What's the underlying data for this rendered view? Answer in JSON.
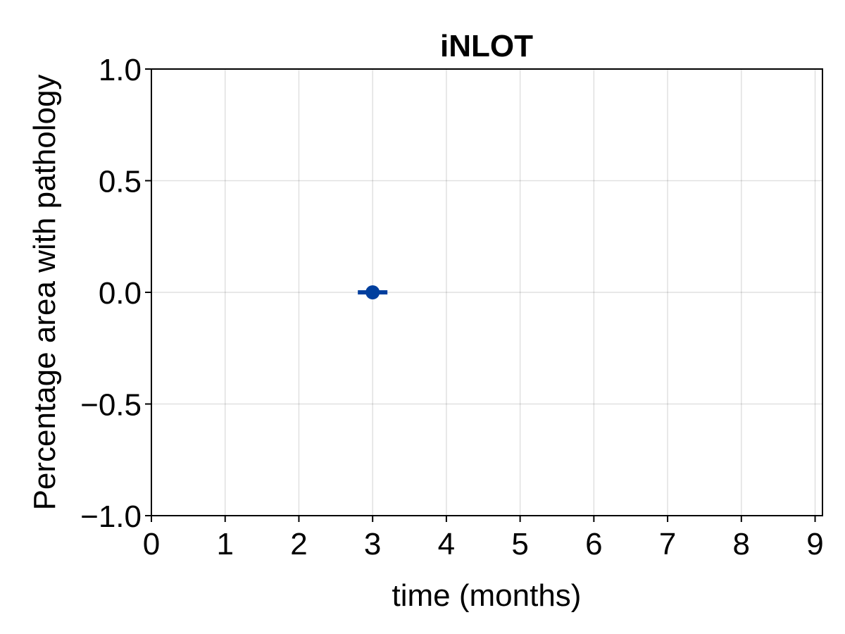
{
  "chart_data": {
    "type": "scatter",
    "title": "iNLOT",
    "xlabel": "time (months)",
    "ylabel": "Percentage area with pathology",
    "xlim": [
      0,
      9.1
    ],
    "ylim": [
      -1.0,
      1.0
    ],
    "x_ticks": [
      0,
      1,
      2,
      3,
      4,
      5,
      6,
      7,
      8,
      9
    ],
    "x_tick_labels": [
      "0",
      "1",
      "2",
      "3",
      "4",
      "5",
      "6",
      "7",
      "8",
      "9"
    ],
    "y_ticks": [
      -1.0,
      -0.5,
      0.0,
      0.5,
      1.0
    ],
    "y_tick_labels": [
      "−1.0",
      "−0.5",
      "0.0",
      "0.5",
      "1.0"
    ],
    "grid": true,
    "series": [
      {
        "color": "#003f9e",
        "points": [
          {
            "x": 3,
            "y": 0.0,
            "err_low": 0.0,
            "err_high": 0.0
          }
        ]
      }
    ]
  }
}
